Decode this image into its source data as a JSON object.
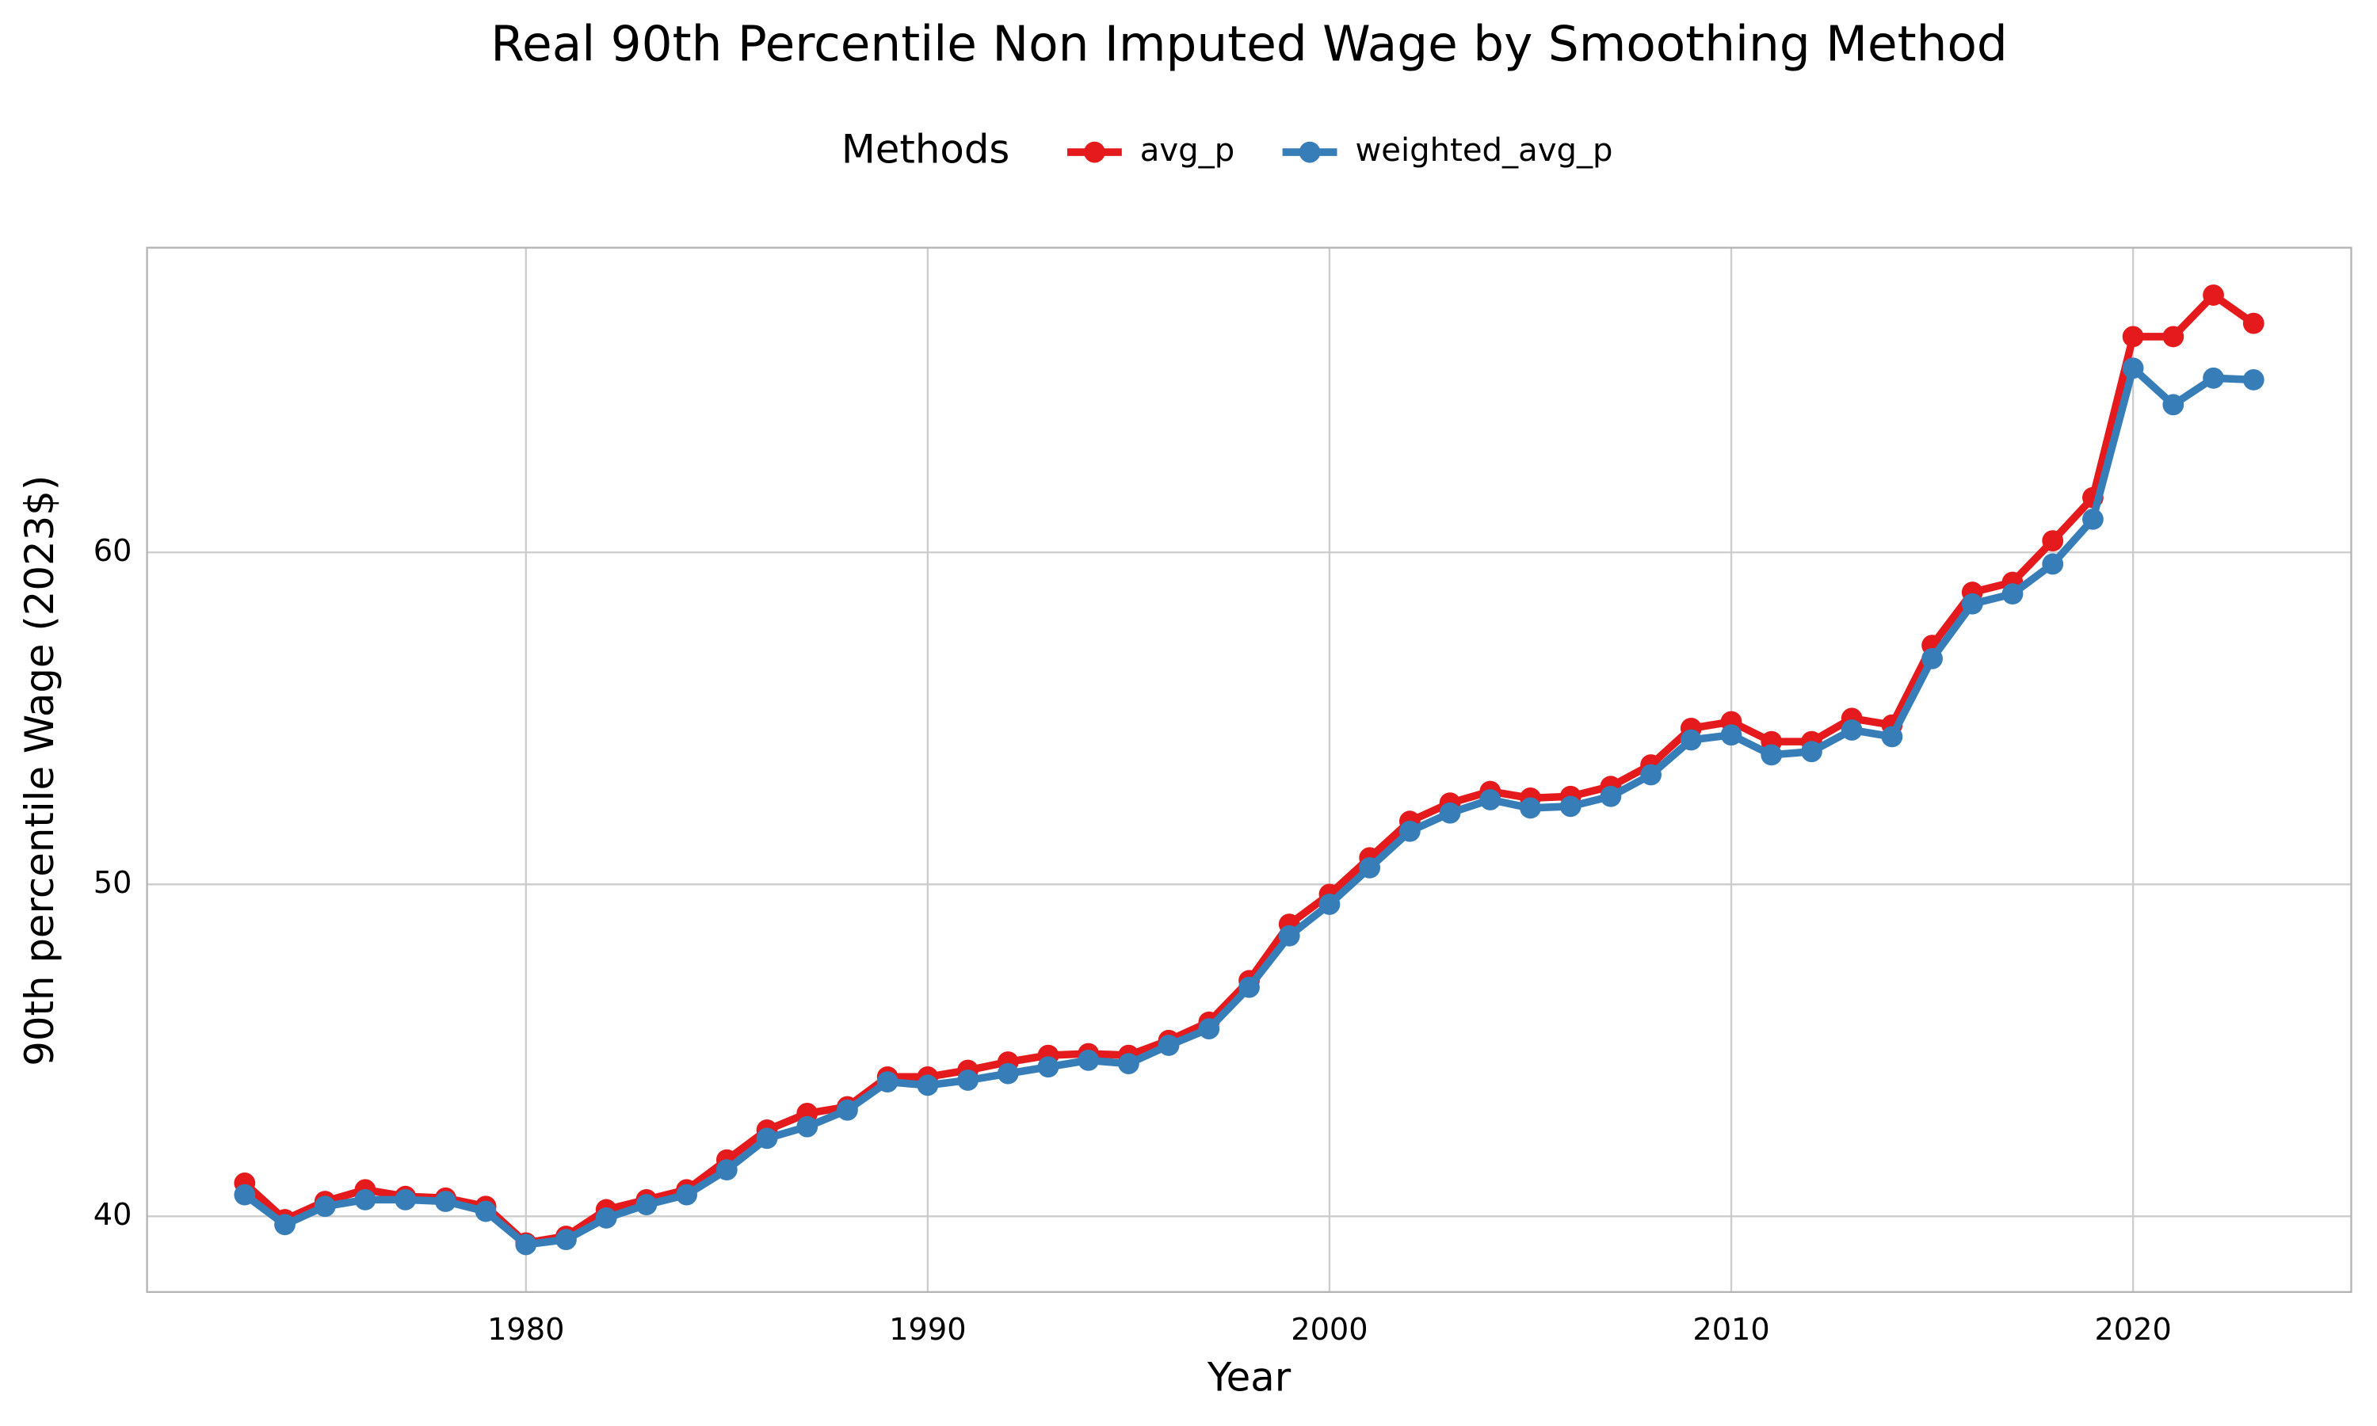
{
  "chart_data": {
    "type": "line",
    "title": "Real 90th Percentile Non Imputed Wage by Smoothing Method",
    "x_label": "Year",
    "y_label": "90th percentile Wage (2023$)",
    "legend_title": "Methods",
    "x": [
      1973,
      1974,
      1975,
      1976,
      1977,
      1978,
      1979,
      1980,
      1981,
      1982,
      1983,
      1984,
      1985,
      1986,
      1987,
      1988,
      1989,
      1990,
      1991,
      1992,
      1993,
      1994,
      1995,
      1996,
      1997,
      1998,
      1999,
      2000,
      2001,
      2002,
      2003,
      2004,
      2005,
      2006,
      2007,
      2008,
      2009,
      2010,
      2011,
      2012,
      2013,
      2014,
      2015,
      2016,
      2017,
      2018,
      2019,
      2020,
      2021,
      2022,
      2023
    ],
    "series": [
      {
        "name": "avg_p",
        "color": "#e41a1c",
        "values": [
          41.0,
          39.9,
          40.45,
          40.8,
          40.6,
          40.55,
          40.3,
          39.2,
          39.4,
          40.2,
          40.5,
          40.8,
          41.7,
          42.6,
          43.1,
          43.3,
          44.2,
          44.2,
          44.4,
          44.65,
          44.85,
          44.9,
          44.85,
          45.3,
          45.85,
          47.1,
          48.8,
          49.7,
          50.8,
          51.9,
          52.45,
          52.8,
          52.6,
          52.65,
          52.95,
          53.6,
          54.7,
          54.9,
          54.3,
          54.3,
          55.0,
          54.8,
          57.2,
          58.8,
          59.1,
          60.35,
          61.65,
          66.5,
          66.5,
          67.75,
          66.9
        ]
      },
      {
        "name": "weighted_avg_p",
        "color": "#377eb8",
        "values": [
          40.65,
          39.75,
          40.3,
          40.5,
          40.5,
          40.45,
          40.15,
          39.15,
          39.3,
          39.95,
          40.35,
          40.65,
          41.4,
          42.35,
          42.7,
          43.2,
          44.05,
          43.95,
          44.1,
          44.3,
          44.5,
          44.7,
          44.6,
          45.15,
          45.65,
          46.9,
          48.45,
          49.4,
          50.5,
          51.6,
          52.15,
          52.55,
          52.3,
          52.35,
          52.65,
          53.3,
          54.35,
          54.5,
          53.9,
          54.0,
          54.65,
          54.45,
          56.8,
          58.45,
          58.75,
          59.65,
          61.0,
          65.55,
          64.45,
          65.25,
          65.2
        ]
      }
    ],
    "xlim": [
      1970.57,
      2025.43
    ],
    "xticks": [
      1980,
      1990,
      2000,
      2010,
      2020
    ],
    "ylim": [
      37.72,
      69.18
    ],
    "yticks": [
      40,
      50,
      60
    ],
    "grid": true,
    "legend": "top"
  }
}
